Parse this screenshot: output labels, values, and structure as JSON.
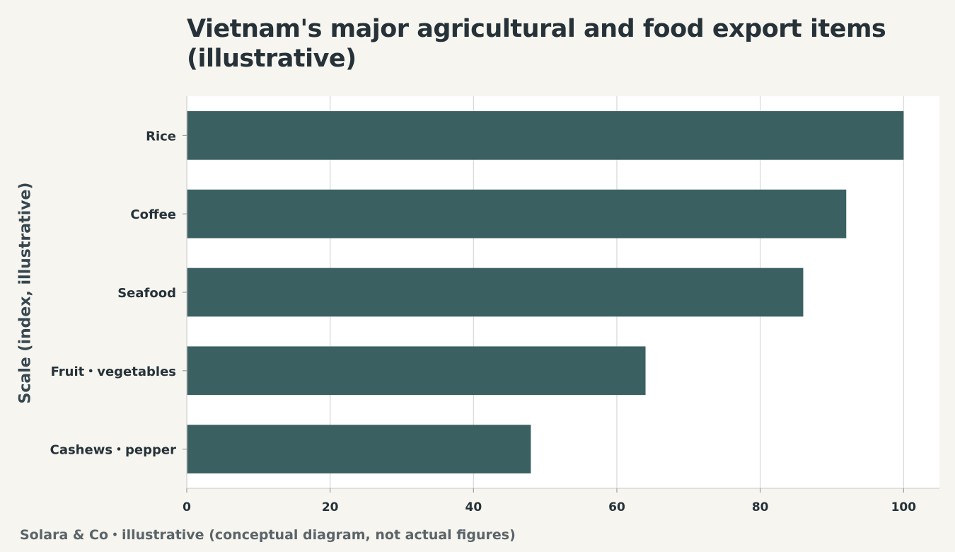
{
  "chart_data": {
    "type": "bar",
    "orientation": "horizontal",
    "title": "Vietnam's major agricultural and food export items (illustrative)",
    "ylabel": "Scale (index, illustrative)",
    "xlabel": "",
    "categories": [
      "Rice",
      "Coffee",
      "Seafood",
      "Fruit・vegetables",
      "Cashews・pepper"
    ],
    "values": [
      100,
      92,
      86,
      64,
      48
    ],
    "xlim": [
      0,
      105
    ],
    "xticks": [
      0,
      20,
      40,
      60,
      80,
      100
    ],
    "grid": true,
    "legend": "none",
    "bar_color": "#3a6062",
    "footer": "Solara & Co・illustrative (conceptual diagram, not actual figures)"
  }
}
